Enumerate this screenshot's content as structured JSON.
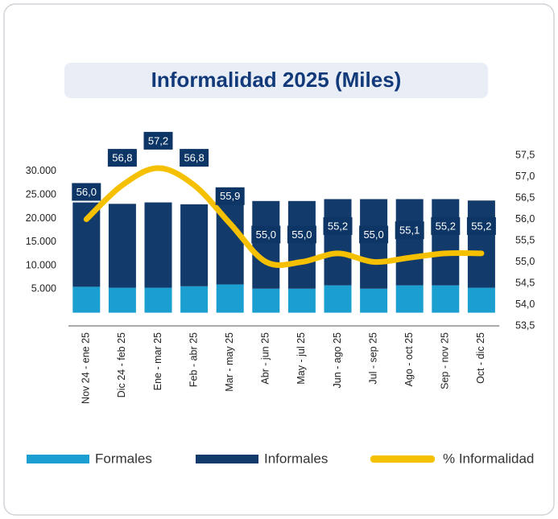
{
  "chart_data": {
    "type": "bar",
    "title": "Informalidad 2025 (Miles)",
    "categories": [
      "Nov 24 - ene 25",
      "Dic 24 - feb 25",
      "Ene - mar 25",
      "Feb - abr 25",
      "Mar - may 25",
      "Abr - jun 25",
      "May - jul 25",
      "Jun - ago 25",
      "Jul - sep 25",
      "Ago - oct 25",
      "Sep - nov 25",
      "Oct - dic 25"
    ],
    "series": [
      {
        "name": "Formales",
        "color": "#1a9fd0",
        "values": [
          5500,
          5300,
          5300,
          5600,
          6000,
          5100,
          5100,
          5800,
          5100,
          5800,
          5800,
          5300
        ]
      },
      {
        "name": "Informales",
        "color": "#123a6b",
        "values": [
          17900,
          17800,
          18100,
          17400,
          17400,
          18600,
          18600,
          18300,
          19000,
          18300,
          18300,
          18500
        ]
      },
      {
        "name": "% Informalidad",
        "color": "#f5c000",
        "type": "line",
        "axis": "y2",
        "values": [
          56.0,
          56.8,
          57.2,
          56.8,
          55.9,
          55.0,
          55.0,
          55.2,
          55.0,
          55.1,
          55.2,
          55.2
        ],
        "value_labels": [
          "56,0",
          "56,8",
          "57,2",
          "56,8",
          "55,9",
          "55,0",
          "55,0",
          "55,2",
          "55,0",
          "55,1",
          "55,2",
          "55,2"
        ]
      }
    ],
    "ylim": [
      -2800,
      33400
    ],
    "yticks": [
      {
        "value": 5000,
        "label": "5.000"
      },
      {
        "value": 10000,
        "label": "10.000"
      },
      {
        "value": 15000,
        "label": "15.000"
      },
      {
        "value": 20000,
        "label": "20.000"
      },
      {
        "value": 25000,
        "label": "25.000"
      },
      {
        "value": 30000,
        "label": "30.000"
      }
    ],
    "y2lim": [
      53.5,
      57.5
    ],
    "y2ticks": [
      {
        "value": 53.5,
        "label": "53,5"
      },
      {
        "value": 54.0,
        "label": "54,0"
      },
      {
        "value": 54.5,
        "label": "54,5"
      },
      {
        "value": 55.0,
        "label": "55,0"
      },
      {
        "value": 55.5,
        "label": "55,5"
      },
      {
        "value": 56.0,
        "label": "56,0"
      },
      {
        "value": 56.5,
        "label": "56,5"
      },
      {
        "value": 57.0,
        "label": "57,0"
      },
      {
        "value": 57.5,
        "label": "57,5"
      }
    ],
    "legend": "bottom"
  }
}
